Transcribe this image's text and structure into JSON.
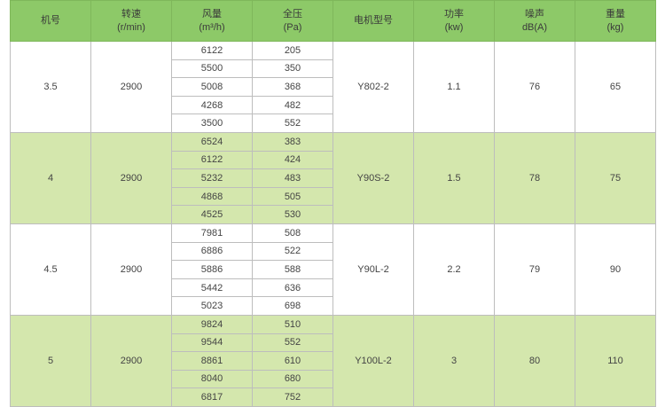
{
  "headers": [
    {
      "l1": "机号",
      "l2": ""
    },
    {
      "l1": "转速",
      "l2": "(r/min)"
    },
    {
      "l1": "风量",
      "l2": "(m³/h)"
    },
    {
      "l1": "全压",
      "l2": "(Pa)"
    },
    {
      "l1": "电机型号",
      "l2": ""
    },
    {
      "l1": "功率",
      "l2": "(kw)"
    },
    {
      "l1": "噪声",
      "l2": "dB(A)"
    },
    {
      "l1": "重量",
      "l2": "(kg)"
    }
  ],
  "groups": [
    {
      "model_no": "3.5",
      "speed": "2900",
      "motor": "Y802-2",
      "power": "1.1",
      "noise": "76",
      "weight": "65",
      "green": false,
      "rows": [
        [
          "6122",
          "205"
        ],
        [
          "5500",
          "350"
        ],
        [
          "5008",
          "368"
        ],
        [
          "4268",
          "482"
        ],
        [
          "3500",
          "552"
        ]
      ]
    },
    {
      "model_no": "4",
      "speed": "2900",
      "motor": "Y90S-2",
      "power": "1.5",
      "noise": "78",
      "weight": "75",
      "green": true,
      "rows": [
        [
          "6524",
          "383"
        ],
        [
          "6122",
          "424"
        ],
        [
          "5232",
          "483"
        ],
        [
          "4868",
          "505"
        ],
        [
          "4525",
          "530"
        ]
      ]
    },
    {
      "model_no": "4.5",
      "speed": "2900",
      "motor": "Y90L-2",
      "power": "2.2",
      "noise": "79",
      "weight": "90",
      "green": false,
      "rows": [
        [
          "7981",
          "508"
        ],
        [
          "6886",
          "522"
        ],
        [
          "5886",
          "588"
        ],
        [
          "5442",
          "636"
        ],
        [
          "5023",
          "698"
        ]
      ]
    },
    {
      "model_no": "5",
      "speed": "2900",
      "motor": "Y100L-2",
      "power": "3",
      "noise": "80",
      "weight": "110",
      "green": true,
      "rows": [
        [
          "9824",
          "510"
        ],
        [
          "9544",
          "552"
        ],
        [
          "8861",
          "610"
        ],
        [
          "8040",
          "680"
        ],
        [
          "6817",
          "752"
        ]
      ]
    }
  ]
}
